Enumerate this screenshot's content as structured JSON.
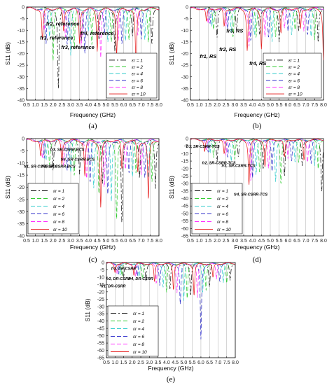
{
  "chart_data": [
    {
      "type": "line",
      "panel_label": "(a)",
      "xlabel": "Frequency (GHz)",
      "ylabel": "S11 (dB)",
      "xlim": [
        0.5,
        8.0
      ],
      "ylim": [
        -40,
        0
      ],
      "x_ticks": [
        "0.5",
        "1.0",
        "1.5",
        "2.0",
        "2.5",
        "3.0",
        "3.5",
        "4.0",
        "4.5",
        "5.0",
        "5.5",
        "6.0",
        "6.5",
        "7.0",
        "7.5",
        "8.0"
      ],
      "y_ticks": [
        0,
        -5,
        -10,
        -15,
        -20,
        -25,
        -30,
        -35,
        -40
      ],
      "grid": "vertical",
      "legend_position": "bottom-right",
      "legend": [
        "εr = 1",
        "εr = 2",
        "εr = 4",
        "εr = 6",
        "εr = 8",
        "εr = 10"
      ],
      "annotations": [
        {
          "text": "fr1, reference",
          "x": 2.2,
          "y": -14
        },
        {
          "text": "fr2, reference",
          "x": 2.55,
          "y": -8
        },
        {
          "text": "fr3, reference",
          "x": 3.4,
          "y": -18
        },
        {
          "text": "fr4, reference",
          "x": 4.5,
          "y": -12
        }
      ],
      "series": [
        {
          "name": "εr = 1",
          "x": [
            2.3,
            3.6,
            4.6,
            5.5,
            6.5,
            7.6
          ],
          "y": [
            -35,
            -14,
            -13,
            -18,
            -12,
            -16
          ]
        },
        {
          "name": "εr = 2",
          "x": [
            2.0,
            3.2,
            4.2,
            5.3,
            6.3,
            7.4
          ],
          "y": [
            -22,
            -18,
            -16,
            -14,
            -13,
            -15
          ]
        },
        {
          "name": "εr = 4",
          "x": [
            1.8,
            3.0,
            4.0,
            5.1,
            6.1,
            7.2
          ],
          "y": [
            -12,
            -20,
            -10,
            -15,
            -14,
            -13
          ]
        },
        {
          "name": "εr = 6",
          "x": [
            1.6,
            2.8,
            3.8,
            4.9,
            5.9,
            7.0
          ],
          "y": [
            -16,
            -15,
            -19,
            -12,
            -16,
            -13
          ]
        },
        {
          "name": "εr = 8",
          "x": [
            1.5,
            2.7,
            3.6,
            4.7,
            5.7,
            6.8
          ],
          "y": [
            -10,
            -12,
            -17,
            -21,
            -14,
            -12
          ]
        },
        {
          "name": "εr = 10",
          "x": [
            1.4,
            2.6,
            3.5,
            4.5,
            5.6,
            6.7
          ],
          "y": [
            -14,
            -10,
            -15,
            -18,
            -20,
            -28
          ]
        }
      ]
    },
    {
      "type": "line",
      "panel_label": "(b)",
      "xlabel": "Frequency (GHz)",
      "ylabel": "S11 (dB)",
      "xlim": [
        0.5,
        8.0
      ],
      "ylim": [
        -40,
        0
      ],
      "x_ticks": [
        "0.5",
        "1.0",
        "1.5",
        "2.0",
        "2.5",
        "3.0",
        "3.5",
        "4.0",
        "4.5",
        "5.0",
        "5.5",
        "6.0",
        "6.5",
        "7.0",
        "7.5",
        "8.0"
      ],
      "y_ticks": [
        0,
        -5,
        -10,
        -15,
        -20,
        -25,
        -30,
        -35,
        -40
      ],
      "grid": "vertical",
      "legend_position": "bottom-right",
      "legend": [
        "εr = 1",
        "εr = 2",
        "εr = 4",
        "εr = 6",
        "εr = 8",
        "εr = 10"
      ],
      "annotations": [
        {
          "text": "fr1, RS",
          "x": 1.5,
          "y": -22
        },
        {
          "text": "fr2, RS",
          "x": 2.6,
          "y": -19
        },
        {
          "text": "fr3, RS",
          "x": 3.0,
          "y": -11
        },
        {
          "text": "fr4, RS",
          "x": 4.3,
          "y": -25
        }
      ],
      "series": [
        {
          "name": "εr = 1",
          "x": [
            2.0,
            3.1,
            4.4,
            5.5,
            6.6,
            7.7
          ],
          "y": [
            -12,
            -10,
            -11,
            -14,
            -10,
            -15
          ]
        },
        {
          "name": "εr = 2",
          "x": [
            1.8,
            2.9,
            4.2,
            5.3,
            6.4,
            7.5
          ],
          "y": [
            -9,
            -12,
            -13,
            -12,
            -9,
            -14
          ]
        },
        {
          "name": "εr = 4",
          "x": [
            1.7,
            2.8,
            4.1,
            5.1,
            6.2,
            7.3
          ],
          "y": [
            -8,
            -10,
            -12,
            -15,
            -11,
            -12
          ]
        },
        {
          "name": "εr = 6",
          "x": [
            1.6,
            2.6,
            3.9,
            4.9,
            6.0,
            7.1
          ],
          "y": [
            -7,
            -9,
            -14,
            -13,
            -10,
            -11
          ]
        },
        {
          "name": "εr = 8",
          "x": [
            1.5,
            2.5,
            3.8,
            4.7,
            5.8,
            6.9
          ],
          "y": [
            -7,
            -8,
            -16,
            -12,
            -9,
            -10
          ]
        },
        {
          "name": "εr = 10",
          "x": [
            1.4,
            2.4,
            3.7,
            4.5,
            5.6,
            6.7,
            8.0
          ],
          "y": [
            -6,
            -8,
            -18,
            -17,
            -11,
            -9,
            -22
          ]
        }
      ]
    },
    {
      "type": "line",
      "panel_label": "(c)",
      "xlabel": "Frequency (GHz)",
      "ylabel": "S11 (dB)",
      "xlim": [
        0.5,
        8.0
      ],
      "ylim": [
        -40,
        0
      ],
      "x_ticks": [
        "0.5",
        "1.0",
        "1.5",
        "2.0",
        "2.5",
        "3.0",
        "3.5",
        "4.0",
        "4.5",
        "5.0",
        "5.5",
        "6.0",
        "6.5",
        "7.0",
        "7.5",
        "8.0"
      ],
      "y_ticks": [
        0,
        -5,
        -10,
        -15,
        -20,
        -25,
        -30,
        -35,
        -40
      ],
      "grid": "vertical",
      "legend_position": "bottom-left",
      "legend": [
        "εr = 1",
        "εr = 2",
        "εr = 4",
        "εr = 6",
        "εr = 8",
        "εr = 10"
      ],
      "annotations": [
        {
          "text": "fr1, SR-CSRR-BCS",
          "x": 1.3,
          "y": -12
        },
        {
          "text": "fr2, SR-CSRR-BCS",
          "x": 2.3,
          "y": -12
        },
        {
          "text": "fr3, SR-CSRR-BCS",
          "x": 2.8,
          "y": -5
        },
        {
          "text": "fr4, SR-CSRR-BCS",
          "x": 3.4,
          "y": -9
        }
      ],
      "series": [
        {
          "name": "εr = 1",
          "x": [
            2.0,
            3.5,
            4.8,
            5.9,
            6.9,
            7.8
          ],
          "y": [
            -12,
            -14,
            -18,
            -35,
            -16,
            -20
          ]
        },
        {
          "name": "εr = 2",
          "x": [
            1.8,
            3.2,
            4.6,
            5.6,
            6.7,
            7.6
          ],
          "y": [
            -10,
            -15,
            -22,
            -33,
            -14,
            -18
          ]
        },
        {
          "name": "εr = 4",
          "x": [
            1.6,
            3.0,
            4.3,
            5.3,
            6.5,
            7.4
          ],
          "y": [
            -9,
            -13,
            -20,
            -25,
            -15,
            -16
          ]
        },
        {
          "name": "εr = 6",
          "x": [
            1.5,
            2.8,
            4.1,
            5.1,
            6.3,
            7.2
          ],
          "y": [
            -8,
            -12,
            -18,
            -23,
            -13,
            -15
          ]
        },
        {
          "name": "εr = 8",
          "x": [
            1.4,
            2.6,
            3.9,
            4.9,
            6.1,
            7.0
          ],
          "y": [
            -8,
            -11,
            -16,
            -20,
            -12,
            -14
          ]
        },
        {
          "name": "εr = 10",
          "x": [
            1.3,
            2.5,
            3.8,
            4.7,
            5.9,
            6.8,
            7.4
          ],
          "y": [
            -7,
            -10,
            -15,
            -28,
            -12,
            -13,
            -25
          ]
        }
      ]
    },
    {
      "type": "line",
      "panel_label": "(d)",
      "xlabel": "Frequency (GHz)",
      "ylabel": "S11 (dB)",
      "xlim": [
        0.5,
        8.0
      ],
      "ylim": [
        -65,
        0
      ],
      "x_ticks": [
        "0.5",
        "1.0",
        "1.5",
        "2.0",
        "2.5",
        "3.0",
        "3.5",
        "4.0",
        "4.5",
        "5.0",
        "5.5",
        "6.0",
        "6.5",
        "7.0",
        "7.5",
        "8.0"
      ],
      "y_ticks": [
        0,
        -5,
        -10,
        -15,
        -20,
        -25,
        -30,
        -35,
        -40,
        -45,
        -50,
        -55,
        -60,
        -65
      ],
      "grid": "vertical",
      "legend_position": "bottom-left",
      "legend": [
        "εr = 1",
        "εr = 2",
        "εr = 4",
        "εr = 6",
        "εr = 8",
        "εr = 10"
      ],
      "annotations": [
        {
          "text": "fr1, SR-CSRR-TCS",
          "x": 1.2,
          "y": -6
        },
        {
          "text": "fr2, SR-CSRR-TCS",
          "x": 2.1,
          "y": -17
        },
        {
          "text": "fr3, SR-CSRR-TCS",
          "x": 3.2,
          "y": -19
        },
        {
          "text": "fr4, SR-CSRR-TCS",
          "x": 3.9,
          "y": -38
        }
      ],
      "series": [
        {
          "name": "εr = 1",
          "x": [
            2.0,
            3.2,
            4.6,
            5.8,
            6.8,
            7.9
          ],
          "y": [
            -14,
            -12,
            -20,
            -25,
            -18,
            -35
          ]
        },
        {
          "name": "εr = 2",
          "x": [
            1.8,
            3.0,
            4.4,
            5.6,
            6.6,
            7.7
          ],
          "y": [
            -12,
            -13,
            -22,
            -30,
            -16,
            -20
          ]
        },
        {
          "name": "εr = 4",
          "x": [
            1.6,
            2.8,
            4.2,
            5.3,
            6.4,
            7.5
          ],
          "y": [
            -10,
            -14,
            -24,
            -28,
            -15,
            -18
          ]
        },
        {
          "name": "εr = 6",
          "x": [
            1.5,
            2.6,
            4.0,
            5.1,
            6.2,
            7.3
          ],
          "y": [
            -9,
            -12,
            -26,
            -22,
            -14,
            -16
          ]
        },
        {
          "name": "εr = 8",
          "x": [
            1.4,
            2.5,
            3.9,
            4.9,
            6.0,
            7.1
          ],
          "y": [
            -8,
            -11,
            -28,
            -20,
            -13,
            -15
          ]
        },
        {
          "name": "εr = 10",
          "x": [
            1.3,
            2.4,
            3.8,
            4.7,
            5.8,
            6.9
          ],
          "y": [
            -8,
            -10,
            -30,
            -18,
            -12,
            -14
          ]
        }
      ]
    },
    {
      "type": "line",
      "panel_label": "(e)",
      "xlabel": "Frequency (GHz)",
      "ylabel": "S11 (dB)",
      "xlim": [
        0.5,
        8.0
      ],
      "ylim": [
        -65,
        0
      ],
      "x_ticks": [
        "0.5",
        "1.0",
        "1.5",
        "2.0",
        "2.5",
        "3.0",
        "3.5",
        "4.0",
        "4.5",
        "5.0",
        "5.5",
        "6.0",
        "6.5",
        "7.0",
        "7.5",
        "8.0"
      ],
      "y_ticks": [
        0,
        -5,
        -10,
        -15,
        -20,
        -25,
        -30,
        -35,
        -40,
        -45,
        -50,
        -55,
        -60,
        -65
      ],
      "grid": "vertical",
      "legend_position": "bottom-left",
      "legend": [
        "εr = 1",
        "εr = 2",
        "εr = 4",
        "εr = 6",
        "εr = 8",
        "εr = 10"
      ],
      "annotations": [
        {
          "text": "fr1, DR-CSRR",
          "x": 0.9,
          "y": -17
        },
        {
          "text": "fr2, DR-CSRR",
          "x": 1.2,
          "y": -12
        },
        {
          "text": "fr3, DR-CSRR",
          "x": 1.5,
          "y": -5
        },
        {
          "text": "fr4, DR-CSRR",
          "x": 2.5,
          "y": -12
        }
      ],
      "series": [
        {
          "name": "εr = 1",
          "x": [
            1.5,
            2.8,
            4.2,
            5.4,
            6.5,
            7.7
          ],
          "y": [
            -10,
            -12,
            -18,
            -22,
            -16,
            -12
          ]
        },
        {
          "name": "εr = 2",
          "x": [
            1.4,
            2.6,
            4.0,
            5.2,
            6.3,
            7.5
          ],
          "y": [
            -9,
            -11,
            -20,
            -24,
            -18,
            -14
          ]
        },
        {
          "name": "εr = 4",
          "x": [
            1.3,
            2.4,
            3.8,
            5.0,
            6.1,
            7.3
          ],
          "y": [
            -8,
            -10,
            -16,
            -26,
            -20,
            -13
          ]
        },
        {
          "name": "εr = 6",
          "x": [
            1.2,
            2.3,
            3.6,
            4.8,
            6.0,
            7.1
          ],
          "y": [
            -7,
            -9,
            -15,
            -28,
            -52,
            -12
          ]
        },
        {
          "name": "εr = 8",
          "x": [
            1.1,
            2.2,
            3.4,
            4.6,
            5.8,
            6.9
          ],
          "y": [
            -7,
            -9,
            -14,
            -20,
            -24,
            -11
          ]
        },
        {
          "name": "εr = 10",
          "x": [
            1.0,
            2.1,
            3.3,
            4.4,
            5.6,
            6.7
          ],
          "y": [
            -6,
            -8,
            -13,
            -18,
            -22,
            -10
          ]
        }
      ]
    }
  ],
  "styles": {
    "series_colors": [
      "#1a1a1a",
      "#33cc33",
      "#33cccc",
      "#3333cc",
      "#ff33ff",
      "#e62020"
    ],
    "series_dashes": [
      "8 3 2 3",
      "6 3",
      "6 3",
      "6 3",
      "6 3",
      "none"
    ],
    "grid_color": "#999999",
    "axis_color": "#000000"
  }
}
